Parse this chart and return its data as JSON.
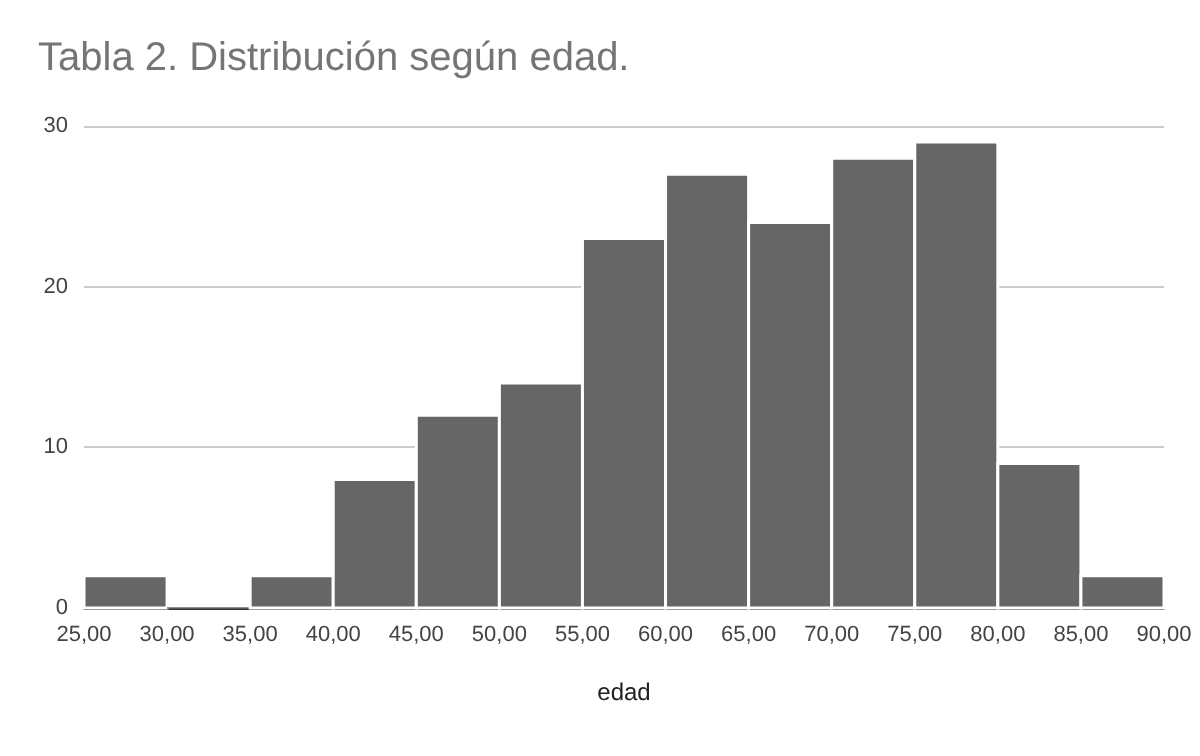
{
  "chart_data": {
    "type": "histogram",
    "title": "Tabla 2. Distribución según edad.",
    "xlabel": "edad",
    "bins": [
      25,
      30,
      35,
      40,
      45,
      50,
      55,
      60,
      65,
      70,
      75,
      80,
      85,
      90
    ],
    "values": [
      2,
      0,
      2,
      8,
      12,
      14,
      23,
      27,
      24,
      28,
      29,
      9,
      2
    ],
    "color": "#666666",
    "xlim": [
      25,
      90
    ],
    "xticks": [
      {
        "value": 25,
        "label": "25,00"
      },
      {
        "value": 30,
        "label": "30,00"
      },
      {
        "value": 35,
        "label": "35,00"
      },
      {
        "value": 40,
        "label": "40,00"
      },
      {
        "value": 45,
        "label": "45,00"
      },
      {
        "value": 50,
        "label": "50,00"
      },
      {
        "value": 55,
        "label": "55,00"
      },
      {
        "value": 60,
        "label": "60,00"
      },
      {
        "value": 65,
        "label": "65,00"
      },
      {
        "value": 70,
        "label": "70,00"
      },
      {
        "value": 75,
        "label": "75,00"
      },
      {
        "value": 80,
        "label": "80,00"
      },
      {
        "value": 85,
        "label": "85,00"
      },
      {
        "value": 90,
        "label": "90,00"
      }
    ],
    "ylim": [
      0,
      30
    ],
    "yticks": [
      0,
      10,
      20,
      30
    ],
    "grid": "y"
  }
}
